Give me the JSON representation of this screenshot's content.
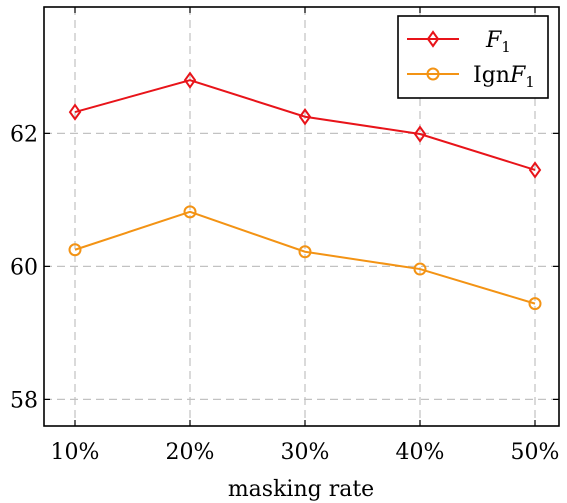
{
  "chart_data": {
    "type": "line",
    "categories": [
      "10%",
      "20%",
      "30%",
      "40%",
      "50%"
    ],
    "series": [
      {
        "name": "F1",
        "name_base": "F",
        "name_sub": "1",
        "name_prefix": "",
        "color": "#e8141a",
        "marker": "diamond",
        "values": [
          62.32,
          62.8,
          62.25,
          61.99,
          61.45
        ]
      },
      {
        "name": "IgnF1",
        "name_base": "F",
        "name_sub": "1",
        "name_prefix": "Ign",
        "color": "#f39314",
        "marker": "circle",
        "values": [
          60.25,
          60.82,
          60.22,
          59.96,
          59.44
        ]
      }
    ],
    "yticks": [
      58,
      60,
      62
    ],
    "ylim": [
      57.6,
      63.9
    ],
    "xlabel": "masking rate",
    "ylabel": "",
    "title": "",
    "grid": true,
    "legend_position": "top-right"
  }
}
